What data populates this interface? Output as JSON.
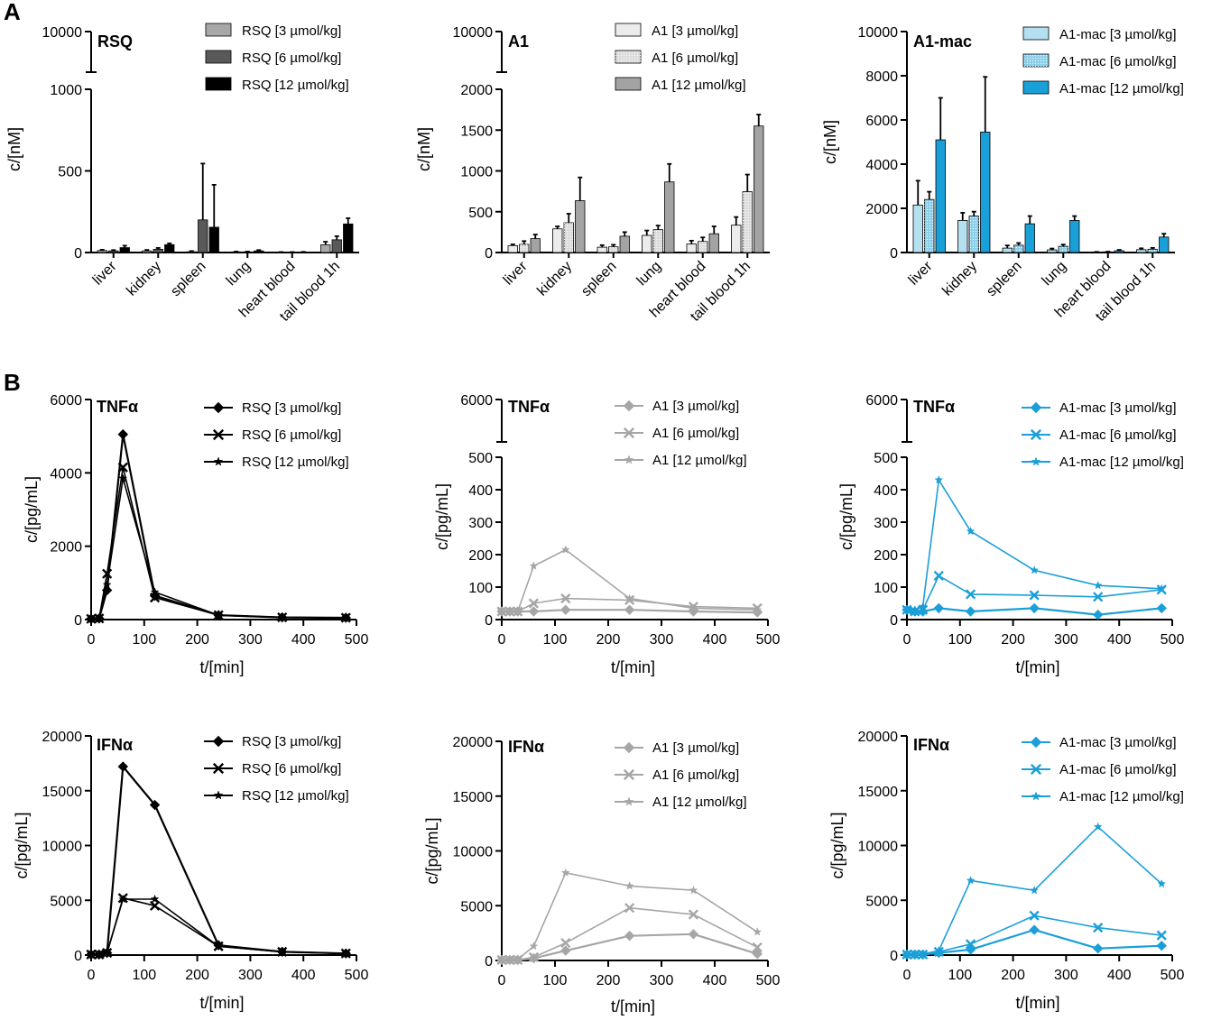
{
  "figure": {
    "panel_labels": [
      "A",
      "B"
    ]
  },
  "chart_data": [
    {
      "type": "bar",
      "title": "RSQ",
      "ylabel": "c/[nM]",
      "xlabel": "",
      "categories": [
        "liver",
        "kidney",
        "spleen",
        "lung",
        "heart blood",
        "tail blood 1h"
      ],
      "axis_break": {
        "lower_ticks": [
          0,
          500,
          1000
        ],
        "upper_ticks": [
          10000
        ],
        "lower_max": 1000
      },
      "colors": [
        "#a8a8a8",
        "#595959",
        "#000000"
      ],
      "patterns": [
        "solid",
        "solid",
        "solid"
      ],
      "series": [
        {
          "name": "RSQ [3 µmol/kg]",
          "values": [
            12,
            10,
            5,
            4,
            2,
            48
          ],
          "errors": [
            5,
            6,
            4,
            2,
            1,
            18
          ]
        },
        {
          "name": "RSQ [6 µmol/kg]",
          "values": [
            10,
            20,
            200,
            4,
            2,
            78
          ],
          "errors": [
            5,
            8,
            345,
            2,
            1,
            22
          ]
        },
        {
          "name": "RSQ [12 µmol/kg]",
          "values": [
            30,
            48,
            155,
            10,
            3,
            175
          ],
          "errors": [
            12,
            8,
            260,
            5,
            1,
            35
          ]
        }
      ]
    },
    {
      "type": "bar",
      "title": "A1",
      "ylabel": "c/[nM]",
      "xlabel": "",
      "categories": [
        "liver",
        "kidney",
        "spleen",
        "lung",
        "heart blood",
        "tail blood 1h"
      ],
      "axis_break": {
        "lower_ticks": [
          0,
          500,
          1000,
          1500,
          2000
        ],
        "upper_ticks": [
          10000
        ],
        "lower_max": 2000
      },
      "colors": [
        "#ececec",
        "#dcdcdc",
        "#a3a3a3"
      ],
      "patterns": [
        "solid",
        "dots",
        "solid"
      ],
      "series": [
        {
          "name": "A1 [3 µmol/kg]",
          "values": [
            85,
            290,
            65,
            210,
            105,
            335
          ],
          "errors": [
            15,
            30,
            25,
            60,
            40,
            100
          ]
        },
        {
          "name": "A1 [6 µmol/kg]",
          "values": [
            100,
            365,
            70,
            280,
            135,
            745
          ],
          "errors": [
            40,
            110,
            25,
            50,
            50,
            210
          ]
        },
        {
          "name": "A1 [12 µmol/kg]",
          "values": [
            170,
            635,
            200,
            865,
            230,
            1550
          ],
          "errors": [
            50,
            285,
            50,
            220,
            90,
            140
          ]
        }
      ]
    },
    {
      "type": "bar",
      "title": "A1-mac",
      "ylabel": "c/[nM]",
      "xlabel": "",
      "categories": [
        "liver",
        "kidney",
        "spleen",
        "lung",
        "heart blood",
        "tail blood 1h"
      ],
      "ylim": [
        0,
        10000
      ],
      "yticks": [
        0,
        2000,
        4000,
        6000,
        8000,
        10000
      ],
      "colors": [
        "#b5e0f2",
        "#8ccfea",
        "#1aa0d8"
      ],
      "patterns": [
        "solid",
        "dots",
        "solid"
      ],
      "series": [
        {
          "name": "A1-mac [3 µmol/kg]",
          "values": [
            2150,
            1450,
            200,
            120,
            20,
            130
          ],
          "errors": [
            1100,
            350,
            120,
            60,
            10,
            60
          ]
        },
        {
          "name": "A1-mac [6 µmol/kg]",
          "values": [
            2400,
            1650,
            330,
            280,
            30,
            150
          ],
          "errors": [
            350,
            200,
            100,
            80,
            10,
            60
          ]
        },
        {
          "name": "A1-mac [12 µmol/kg]",
          "values": [
            5100,
            5450,
            1300,
            1450,
            80,
            700
          ],
          "errors": [
            1900,
            2500,
            350,
            200,
            40,
            150
          ]
        }
      ]
    },
    {
      "type": "line",
      "title": "TNFα",
      "xlabel": "t/[min]",
      "ylabel": "c/[pg/mL]",
      "xlim": [
        0,
        500
      ],
      "xticks": [
        0,
        100,
        200,
        300,
        400,
        500
      ],
      "ylim": [
        0,
        6000
      ],
      "yticks": [
        0,
        2000,
        4000,
        6000
      ],
      "color": "#000000",
      "x": [
        0,
        15,
        30,
        60,
        120,
        240,
        360,
        480
      ],
      "series": [
        {
          "name": "RSQ [3 µmol/kg]",
          "marker": "diamond",
          "values": [
            20,
            30,
            800,
            5050,
            650,
            120,
            60,
            50
          ]
        },
        {
          "name": "RSQ [6 µmol/kg]",
          "marker": "x",
          "values": [
            20,
            30,
            1250,
            4150,
            600,
            120,
            60,
            50
          ]
        },
        {
          "name": "RSQ [12 µmol/kg]",
          "marker": "star",
          "values": [
            20,
            30,
            950,
            3850,
            750,
            120,
            60,
            50
          ]
        }
      ]
    },
    {
      "type": "line",
      "title": "TNFα",
      "xlabel": "t/[min]",
      "ylabel": "c/[pg/mL]",
      "xlim": [
        0,
        500
      ],
      "xticks": [
        0,
        100,
        200,
        300,
        400,
        500
      ],
      "axis_break": {
        "lower_ticks": [
          0,
          100,
          200,
          300,
          400,
          500
        ],
        "upper_ticks": [
          6000
        ],
        "lower_max": 500
      },
      "color": "#a6a6a6",
      "x": [
        0,
        15,
        30,
        60,
        120,
        240,
        360,
        480
      ],
      "series": [
        {
          "name": "A1 [3 µmol/kg]",
          "marker": "diamond",
          "values": [
            25,
            25,
            25,
            25,
            30,
            30,
            25,
            22
          ]
        },
        {
          "name": "A1 [6 µmol/kg]",
          "marker": "x",
          "values": [
            25,
            25,
            25,
            50,
            65,
            60,
            40,
            35
          ]
        },
        {
          "name": "A1 [12 µmol/kg]",
          "marker": "star",
          "values": [
            25,
            25,
            25,
            165,
            215,
            65,
            35,
            30
          ]
        }
      ]
    },
    {
      "type": "line",
      "title": "TNFα",
      "xlabel": "t/[min]",
      "ylabel": "c/[pg/mL]",
      "xlim": [
        0,
        500
      ],
      "xticks": [
        0,
        100,
        200,
        300,
        400,
        500
      ],
      "axis_break": {
        "lower_ticks": [
          0,
          100,
          200,
          300,
          400,
          500
        ],
        "upper_ticks": [
          6000
        ],
        "lower_max": 500
      },
      "color": "#1b9fd8",
      "x": [
        0,
        15,
        30,
        60,
        120,
        240,
        360,
        480
      ],
      "series": [
        {
          "name": "A1-mac [3 µmol/kg]",
          "marker": "diamond",
          "values": [
            30,
            25,
            25,
            35,
            25,
            35,
            15,
            35
          ]
        },
        {
          "name": "A1-mac [6 µmol/kg]",
          "marker": "x",
          "values": [
            30,
            25,
            30,
            135,
            78,
            75,
            70,
            92
          ]
        },
        {
          "name": "A1-mac [12 µmol/kg]",
          "marker": "star",
          "values": [
            30,
            30,
            40,
            430,
            272,
            152,
            105,
            95
          ]
        }
      ]
    },
    {
      "type": "line",
      "title": "IFNα",
      "xlabel": "t/[min]",
      "ylabel": "c/[pg/mL]",
      "xlim": [
        0,
        500
      ],
      "xticks": [
        0,
        100,
        200,
        300,
        400,
        500
      ],
      "ylim": [
        0,
        20000
      ],
      "yticks": [
        0,
        5000,
        10000,
        15000,
        20000
      ],
      "color": "#000000",
      "x": [
        0,
        15,
        30,
        60,
        120,
        240,
        360,
        480
      ],
      "series": [
        {
          "name": "RSQ [3 µmol/kg]",
          "marker": "diamond",
          "values": [
            50,
            50,
            200,
            17200,
            13700,
            900,
            300,
            150
          ]
        },
        {
          "name": "RSQ [6 µmol/kg]",
          "marker": "x",
          "values": [
            50,
            50,
            200,
            5200,
            4500,
            800,
            300,
            150
          ]
        },
        {
          "name": "RSQ [12 µmol/kg]",
          "marker": "star",
          "values": [
            50,
            50,
            200,
            5100,
            5100,
            800,
            300,
            150
          ]
        }
      ]
    },
    {
      "type": "line",
      "title": "IFNα",
      "xlabel": "t/[min]",
      "ylabel": "c/[pg/mL]",
      "xlim": [
        0,
        500
      ],
      "xticks": [
        0,
        100,
        200,
        300,
        400,
        500
      ],
      "ylim": [
        0,
        20000
      ],
      "yticks": [
        0,
        5000,
        10000,
        15000,
        20000
      ],
      "color": "#a6a6a6",
      "x": [
        0,
        15,
        30,
        60,
        120,
        240,
        360,
        480
      ],
      "series": [
        {
          "name": "A1 [3 µmol/kg]",
          "marker": "diamond",
          "values": [
            50,
            50,
            50,
            200,
            900,
            2250,
            2400,
            600
          ]
        },
        {
          "name": "A1 [6 µmol/kg]",
          "marker": "x",
          "values": [
            50,
            50,
            50,
            300,
            1600,
            4800,
            4200,
            1200
          ]
        },
        {
          "name": "A1 [12 µmol/kg]",
          "marker": "star",
          "values": [
            50,
            50,
            100,
            1300,
            8000,
            6800,
            6400,
            2600
          ]
        }
      ]
    },
    {
      "type": "line",
      "title": "IFNα",
      "xlabel": "t/[min]",
      "ylabel": "c/[pg/mL]",
      "xlim": [
        0,
        500
      ],
      "xticks": [
        0,
        100,
        200,
        300,
        400,
        500
      ],
      "ylim": [
        0,
        20000
      ],
      "yticks": [
        0,
        5000,
        10000,
        15000,
        20000
      ],
      "color": "#1b9fd8",
      "x": [
        0,
        15,
        30,
        60,
        120,
        240,
        360,
        480
      ],
      "series": [
        {
          "name": "A1-mac [3 µmol/kg]",
          "marker": "diamond",
          "values": [
            50,
            50,
            50,
            200,
            500,
            2300,
            600,
            850
          ]
        },
        {
          "name": "A1-mac [6 µmol/kg]",
          "marker": "x",
          "values": [
            50,
            50,
            50,
            300,
            1000,
            3600,
            2500,
            1800
          ]
        },
        {
          "name": "A1-mac [12 µmol/kg]",
          "marker": "star",
          "values": [
            50,
            50,
            100,
            400,
            6800,
            5900,
            11700,
            6500
          ]
        }
      ]
    }
  ]
}
